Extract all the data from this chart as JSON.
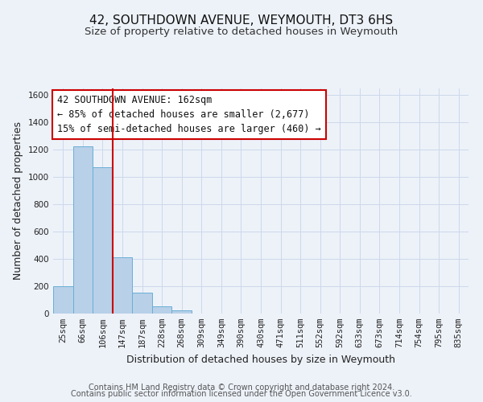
{
  "title": "42, SOUTHDOWN AVENUE, WEYMOUTH, DT3 6HS",
  "subtitle": "Size of property relative to detached houses in Weymouth",
  "xlabel": "Distribution of detached houses by size in Weymouth",
  "ylabel": "Number of detached properties",
  "footer_line1": "Contains HM Land Registry data © Crown copyright and database right 2024.",
  "footer_line2": "Contains public sector information licensed under the Open Government Licence v3.0.",
  "bin_labels": [
    "25sqm",
    "66sqm",
    "106sqm",
    "147sqm",
    "187sqm",
    "228sqm",
    "268sqm",
    "309sqm",
    "349sqm",
    "390sqm",
    "430sqm",
    "471sqm",
    "511sqm",
    "552sqm",
    "592sqm",
    "633sqm",
    "673sqm",
    "714sqm",
    "754sqm",
    "795sqm",
    "835sqm"
  ],
  "bar_heights": [
    200,
    1225,
    1075,
    410,
    155,
    52,
    22,
    0,
    0,
    0,
    0,
    0,
    0,
    0,
    0,
    0,
    0,
    0,
    0,
    0,
    0
  ],
  "bar_color": "#b8d0e8",
  "bar_edge_color": "#6aaed6",
  "grid_color": "#ccd8ea",
  "background_color": "#edf2f9",
  "vline_x": 3.0,
  "vline_color": "#cc0000",
  "ylim": [
    0,
    1650
  ],
  "yticks": [
    0,
    200,
    400,
    600,
    800,
    1000,
    1200,
    1400,
    1600
  ],
  "annotation_title": "42 SOUTHDOWN AVENUE: 162sqm",
  "annotation_line1": "← 85% of detached houses are smaller (2,677)",
  "annotation_line2": "15% of semi-detached houses are larger (460) →",
  "annotation_box_color": "#ffffff",
  "annotation_box_edge": "#cc0000",
  "title_fontsize": 11,
  "subtitle_fontsize": 9.5,
  "axis_label_fontsize": 9,
  "tick_fontsize": 7.5,
  "annotation_fontsize": 8.5,
  "footer_fontsize": 7
}
